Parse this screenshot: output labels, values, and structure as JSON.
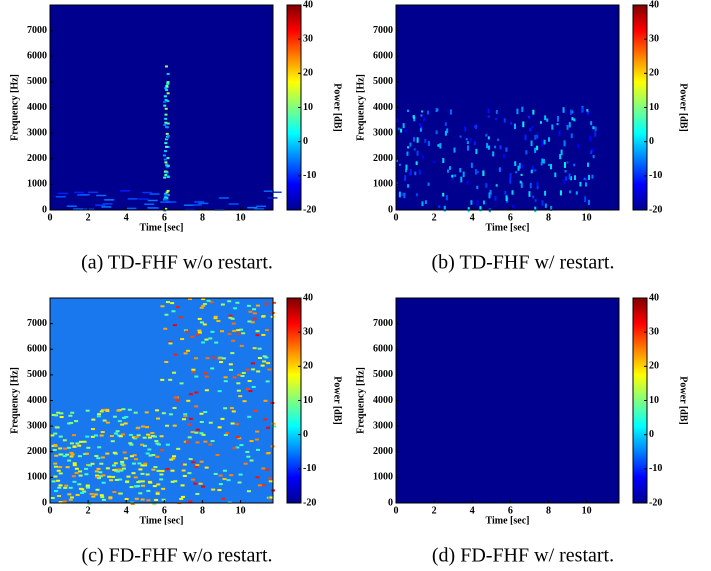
{
  "chart_data": [
    {
      "type": "heatmap",
      "caption": "(a) TD-FHF w/o restart.",
      "xlabel": "Time [sec]",
      "ylabel": "Frequency [Hz]",
      "colorbar_label": "Power [dB]",
      "xlim": [
        0,
        11.7
      ],
      "xticks": [
        0,
        2,
        4,
        6,
        8,
        10
      ],
      "ylim": [
        0,
        8000
      ],
      "yticks": [
        0,
        1000,
        2000,
        3000,
        4000,
        5000,
        6000,
        7000
      ],
      "clim": [
        -20,
        40
      ],
      "cticks": [
        -20,
        -10,
        0,
        10,
        20,
        30,
        40
      ],
      "background_color": "#00008f"
    },
    {
      "type": "heatmap",
      "caption": "(b) TD-FHF w/ restart.",
      "xlabel": "Time [sec]",
      "ylabel": "Frequency [Hz]",
      "colorbar_label": "Power [dB]",
      "xlim": [
        0,
        11.7
      ],
      "xticks": [
        0,
        2,
        4,
        6,
        8,
        10
      ],
      "ylim": [
        0,
        8000
      ],
      "yticks": [
        0,
        1000,
        2000,
        3000,
        4000,
        5000,
        6000,
        7000
      ],
      "clim": [
        -20,
        40
      ],
      "cticks": [
        -20,
        -10,
        0,
        10,
        20,
        30,
        40
      ],
      "background_color": "#00008f"
    },
    {
      "type": "heatmap",
      "caption": "(c) FD-FHF w/o restart.",
      "xlabel": "Time [sec]",
      "ylabel": "Frequency [Hz]",
      "colorbar_label": "Power [dB]",
      "xlim": [
        0,
        11.7
      ],
      "xticks": [
        0,
        2,
        4,
        6,
        8,
        10
      ],
      "ylim": [
        0,
        8000
      ],
      "yticks": [
        0,
        1000,
        2000,
        3000,
        4000,
        5000,
        6000,
        7000
      ],
      "clim": [
        -20,
        40
      ],
      "cticks": [
        -20,
        -10,
        0,
        10,
        20,
        30,
        40
      ],
      "background_color": "#1a78ee"
    },
    {
      "type": "heatmap",
      "caption": "(d) FD-FHF w/ restart.",
      "xlabel": "Time [sec]",
      "ylabel": "Frequency [Hz]",
      "colorbar_label": "Power [dB]",
      "xlim": [
        0,
        11.7
      ],
      "xticks": [
        0,
        2,
        4,
        6,
        8,
        10
      ],
      "ylim": [
        0,
        8000
      ],
      "yticks": [
        0,
        1000,
        2000,
        3000,
        4000,
        5000,
        6000,
        7000
      ],
      "clim": [
        -20,
        40
      ],
      "cticks": [
        -20,
        -10,
        0,
        10,
        20,
        30,
        40
      ],
      "background_color": "#00008f"
    }
  ]
}
